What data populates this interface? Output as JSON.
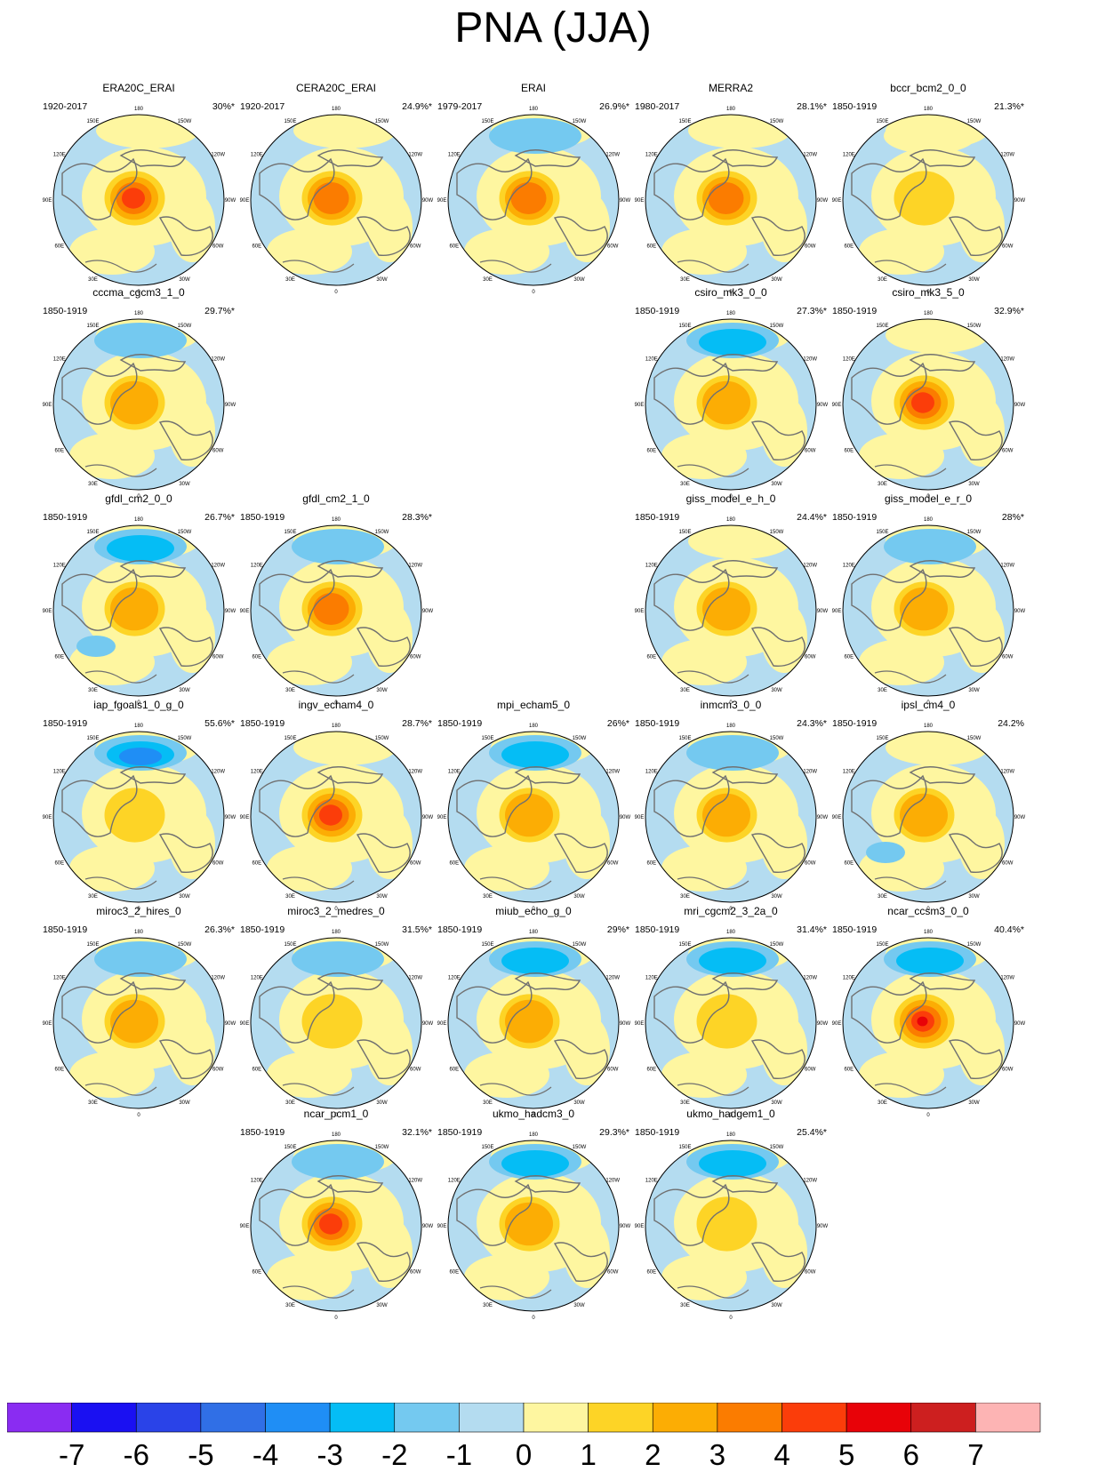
{
  "title": "PNA (JJA)",
  "chart_data": {
    "type": "polar-stereographic anomaly map panels (filled contours)",
    "title": "PNA (JJA)",
    "longitude_labels": [
      "180",
      "150W",
      "120W",
      "90W",
      "60W",
      "30W",
      "0",
      "30E",
      "60E",
      "90E",
      "120E",
      "150E"
    ],
    "colorbar": {
      "labels": [
        "-7",
        "-6",
        "-5",
        "-4",
        "-3",
        "-2",
        "-1",
        "0",
        "1",
        "2",
        "3",
        "4",
        "5",
        "6",
        "7"
      ],
      "colors": [
        "#8a2cf2",
        "#1a10f2",
        "#2a43e8",
        "#306fe6",
        "#1f8ef5",
        "#05bdf5",
        "#74c9f0",
        "#b4dcf0",
        "#fef6a0",
        "#fdd426",
        "#fcad04",
        "#fb7c00",
        "#fb3d0a",
        "#e80208",
        "#cd1f1f",
        "#fdb4b4"
      ]
    },
    "panels": [
      {
        "name": "ERA20C_ERAI",
        "period": "1920-2017",
        "percent": "30%*",
        "center": 4,
        "north_pacific": 0,
        "atlantic": 0
      },
      {
        "name": "CERA20C_ERAI",
        "period": "1920-2017",
        "percent": "24.9%*",
        "center": 3,
        "north_pacific": 0,
        "atlantic": 0
      },
      {
        "name": "ERAI",
        "period": "1979-2017",
        "percent": "26.9%*",
        "center": 3,
        "north_pacific": -1,
        "atlantic": 0
      },
      {
        "name": "MERRA2",
        "period": "1980-2017",
        "percent": "28.1%*",
        "center": 3,
        "north_pacific": 0,
        "atlantic": 0
      },
      {
        "name": "bccr_bcm2_0_0",
        "period": "1850-1919",
        "percent": "21.3%*",
        "center": 1,
        "north_pacific": 1,
        "atlantic": 0
      },
      {
        "name": "cccma_cgcm3_1_0",
        "period": "1850-1919",
        "percent": "29.7%*",
        "center": 2,
        "north_pacific": -1,
        "atlantic": 0
      },
      {
        "name": "csiro_mk3_0_0",
        "period": "1850-1919",
        "percent": "27.3%*",
        "center": 2,
        "north_pacific": -2,
        "atlantic": 0
      },
      {
        "name": "csiro_mk3_5_0",
        "period": "1850-1919",
        "percent": "32.9%*",
        "center": 4,
        "north_pacific": 0,
        "atlantic": 0
      },
      {
        "name": "gfdl_cm2_0_0",
        "period": "1850-1919",
        "percent": "26.7%*",
        "center": 2,
        "north_pacific": -2,
        "atlantic": -1
      },
      {
        "name": "gfdl_cm2_1_0",
        "period": "1850-1919",
        "percent": "28.3%*",
        "center": 3,
        "north_pacific": -1,
        "atlantic": 0
      },
      {
        "name": "giss_model_e_h_0",
        "period": "1850-1919",
        "percent": "24.4%*",
        "center": 2,
        "north_pacific": 0,
        "atlantic": 0
      },
      {
        "name": "giss_model_e_r_0",
        "period": "1850-1919",
        "percent": "28%*",
        "center": 2,
        "north_pacific": -1,
        "atlantic": 0
      },
      {
        "name": "iap_fgoals1_0_g_0",
        "period": "1850-1919",
        "percent": "55.6%*",
        "center": 1,
        "north_pacific": -3,
        "atlantic": 0
      },
      {
        "name": "ingv_echam4_0",
        "period": "1850-1919",
        "percent": "28.7%*",
        "center": 4,
        "north_pacific": 0,
        "atlantic": 0
      },
      {
        "name": "mpi_echam5_0",
        "period": "1850-1919",
        "percent": "26%*",
        "center": 2,
        "north_pacific": -2,
        "atlantic": 0
      },
      {
        "name": "inmcm3_0_0",
        "period": "1850-1919",
        "percent": "24.3%*",
        "center": 2,
        "north_pacific": -1,
        "atlantic": 0
      },
      {
        "name": "ipsl_cm4_0",
        "period": "1850-1919",
        "percent": "24.2%",
        "center": 2,
        "north_pacific": 0,
        "atlantic": -1
      },
      {
        "name": "miroc3_2_hires_0",
        "period": "1850-1919",
        "percent": "26.3%*",
        "center": 2,
        "north_pacific": -1,
        "atlantic": 0
      },
      {
        "name": "miroc3_2_medres_0",
        "period": "1850-1919",
        "percent": "31.5%*",
        "center": 1,
        "north_pacific": -1,
        "atlantic": 0
      },
      {
        "name": "miub_echo_g_0",
        "period": "1850-1919",
        "percent": "29%*",
        "center": 2,
        "north_pacific": -2,
        "atlantic": 0
      },
      {
        "name": "mri_cgcm2_3_2a_0",
        "period": "1850-1919",
        "percent": "31.4%*",
        "center": 1,
        "north_pacific": -2,
        "atlantic": 0
      },
      {
        "name": "ncar_ccsm3_0_0",
        "period": "1850-1919",
        "percent": "40.4%*",
        "center": 5,
        "north_pacific": -2,
        "atlantic": 0
      },
      {
        "name": "ncar_pcm1_0",
        "period": "1850-1919",
        "percent": "32.1%*",
        "center": 4,
        "north_pacific": -1,
        "atlantic": 0
      },
      {
        "name": "ukmo_hadcm3_0",
        "period": "1850-1919",
        "percent": "29.3%*",
        "center": 2,
        "north_pacific": -2,
        "atlantic": 0
      },
      {
        "name": "ukmo_hadgem1_0",
        "period": "1850-1919",
        "percent": "25.4%*",
        "center": 1,
        "north_pacific": -2,
        "atlantic": 0
      }
    ]
  }
}
